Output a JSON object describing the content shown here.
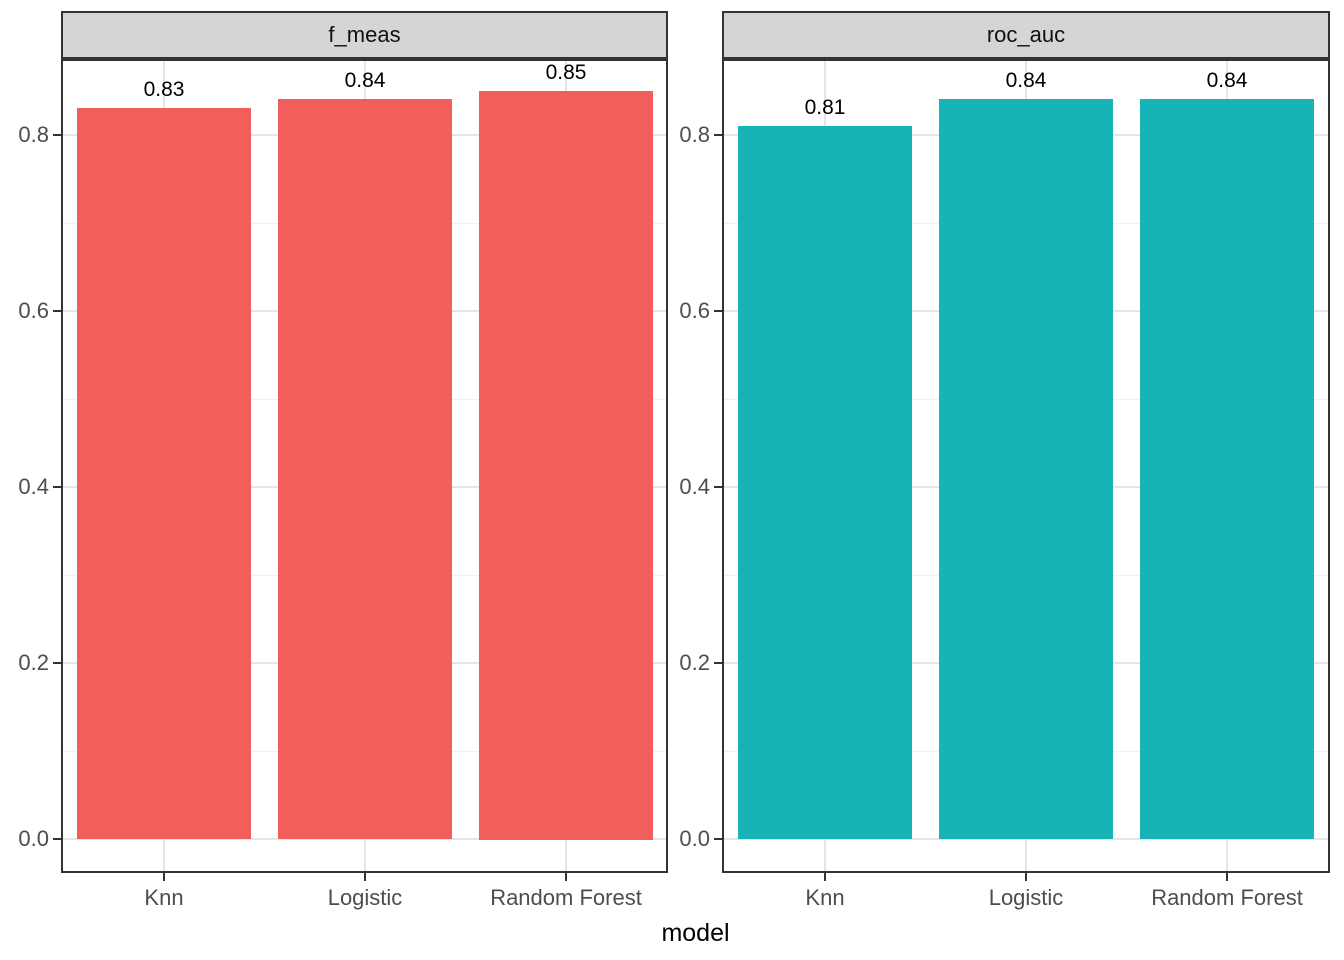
{
  "chart_data": {
    "type": "bar",
    "title": "",
    "facet_labels": [
      "f_meas",
      "roc_auc"
    ],
    "categories": [
      "Knn",
      "Logistic",
      "Random Forest"
    ],
    "series": [
      {
        "name": "f_meas",
        "values": [
          0.83,
          0.84,
          0.85
        ],
        "value_labels": [
          "0.83",
          "0.84",
          "0.85"
        ],
        "bar_color": "#f25e5b"
      },
      {
        "name": "roc_auc",
        "values": [
          0.81,
          0.84,
          0.84
        ],
        "value_labels": [
          "0.81",
          "0.84",
          "0.84"
        ],
        "bar_color": "#18b3b5"
      }
    ],
    "xlabel": "model",
    "ylabel": "",
    "y_tick_labels": [
      "0.0",
      "0.2",
      "0.4",
      "0.6",
      "0.8"
    ],
    "y_tick_values": [
      0.0,
      0.2,
      0.4,
      0.6,
      0.8
    ],
    "y_minor_values": [
      0.1,
      0.3,
      0.5,
      0.7
    ],
    "ylim": [
      -0.036,
      0.8836
    ],
    "grid": "major and minor horizontal, major vertical at categories",
    "legend": "none",
    "colors": {
      "strip_fill": "#d5d5d5",
      "strip_border": "#333333",
      "panel_border": "#333333",
      "grid_major": "#e5e5e5",
      "grid_minor": "#f0f0f0",
      "axis_tick": "#333333",
      "tick_text": "#4d4d4d",
      "label_text": "#000000",
      "background": "#ffffff"
    }
  }
}
